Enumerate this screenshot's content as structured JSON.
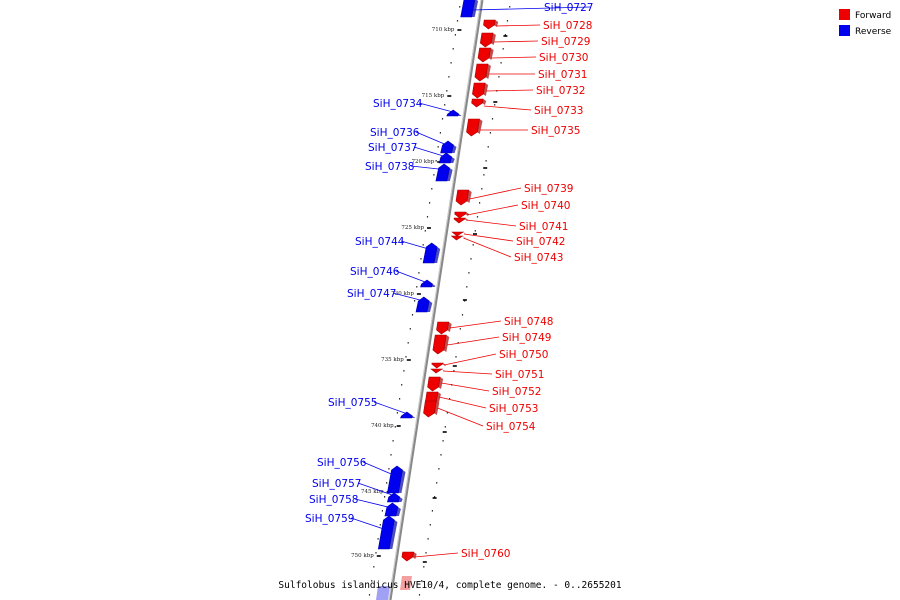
{
  "legend": {
    "forward_label": "Forward",
    "reverse_label": "Reverse"
  },
  "colors": {
    "forward": "#ee0000",
    "reverse": "#0000ee",
    "axis": "#888888"
  },
  "caption": "Sulfolobus islandicus HVE10/4, complete genome. - 0..2655201",
  "axis": {
    "unit": "kbp",
    "ticks": [
      "710 kbp",
      "715 kbp",
      "720 kbp",
      "725 kbp",
      "730 kbp",
      "735 kbp",
      "740 kbp",
      "745 kbp",
      "750 kbp"
    ]
  },
  "genes": [
    {
      "label": "SiH_0727",
      "strand": "reverse"
    },
    {
      "label": "SiH_0728",
      "strand": "forward"
    },
    {
      "label": "SiH_0729",
      "strand": "forward"
    },
    {
      "label": "SiH_0730",
      "strand": "forward"
    },
    {
      "label": "SiH_0731",
      "strand": "forward"
    },
    {
      "label": "SiH_0732",
      "strand": "forward"
    },
    {
      "label": "SiH_0733",
      "strand": "forward"
    },
    {
      "label": "SiH_0734",
      "strand": "reverse"
    },
    {
      "label": "SiH_0735",
      "strand": "forward"
    },
    {
      "label": "SiH_0736",
      "strand": "reverse"
    },
    {
      "label": "SiH_0737",
      "strand": "reverse"
    },
    {
      "label": "SiH_0738",
      "strand": "reverse"
    },
    {
      "label": "SiH_0739",
      "strand": "forward"
    },
    {
      "label": "SiH_0740",
      "strand": "forward"
    },
    {
      "label": "SiH_0741",
      "strand": "forward"
    },
    {
      "label": "SiH_0742",
      "strand": "forward"
    },
    {
      "label": "SiH_0743",
      "strand": "forward"
    },
    {
      "label": "SiH_0744",
      "strand": "reverse"
    },
    {
      "label": "SiH_0746",
      "strand": "reverse"
    },
    {
      "label": "SiH_0747",
      "strand": "reverse"
    },
    {
      "label": "SiH_0748",
      "strand": "forward"
    },
    {
      "label": "SiH_0749",
      "strand": "forward"
    },
    {
      "label": "SiH_0750",
      "strand": "forward"
    },
    {
      "label": "SiH_0751",
      "strand": "forward"
    },
    {
      "label": "SiH_0752",
      "strand": "forward"
    },
    {
      "label": "SiH_0753",
      "strand": "forward"
    },
    {
      "label": "SiH_0754",
      "strand": "forward"
    },
    {
      "label": "SiH_0755",
      "strand": "reverse"
    },
    {
      "label": "SiH_0756",
      "strand": "reverse"
    },
    {
      "label": "SiH_0757",
      "strand": "reverse"
    },
    {
      "label": "SiH_0758",
      "strand": "reverse"
    },
    {
      "label": "SiH_0759",
      "strand": "reverse"
    },
    {
      "label": "SiH_0760",
      "strand": "forward"
    }
  ]
}
